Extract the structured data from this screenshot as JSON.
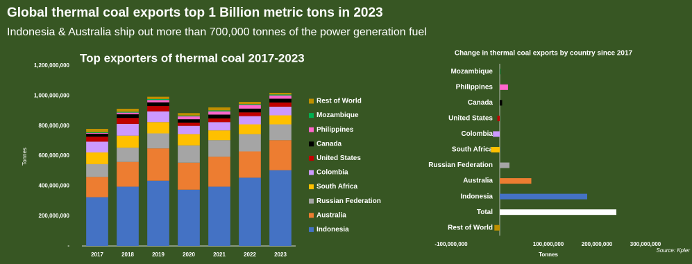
{
  "header": {
    "title": "Global thermal coal exports top 1 Billion metric tons in 2023",
    "subtitle": "Indonesia & Australia ship out more than 700,000 tonnes of the power generation fuel"
  },
  "source": "Source: Kpler",
  "chart_data": [
    {
      "type": "stacked_bar",
      "title": "Top exporters of thermal coal 2017-2023",
      "y_label": "Tonnes",
      "categories": [
        "2017",
        "2018",
        "2019",
        "2020",
        "2021",
        "2022",
        "2023"
      ],
      "ylim": [
        0,
        1200000000
      ],
      "yticks": [
        {
          "value": 0,
          "label": "-"
        },
        {
          "value": 200000000,
          "label": "200,000,000"
        },
        {
          "value": 400000000,
          "label": "400,000,000"
        },
        {
          "value": 600000000,
          "label": "600,000,000"
        },
        {
          "value": 800000000,
          "label": "800,000,000"
        },
        {
          "value": 1000000000,
          "label": "1,000,000,000"
        },
        {
          "value": 1200000000,
          "label": "1,200,000,000"
        }
      ],
      "series": [
        {
          "name": "Indonesia",
          "color": "#4472c4",
          "values": [
            325000000,
            395000000,
            435000000,
            375000000,
            395000000,
            455000000,
            505000000
          ]
        },
        {
          "name": "Australia",
          "color": "#ed7d31",
          "values": [
            135000000,
            165000000,
            215000000,
            180000000,
            200000000,
            175000000,
            200000000
          ]
        },
        {
          "name": "Russian Federation",
          "color": "#a5a5a5",
          "values": [
            85000000,
            95000000,
            100000000,
            115000000,
            110000000,
            115000000,
            105000000
          ]
        },
        {
          "name": "South Africa",
          "color": "#ffc000",
          "values": [
            78000000,
            80000000,
            75000000,
            75000000,
            65000000,
            65000000,
            60000000
          ]
        },
        {
          "name": "Colombia",
          "color": "#cc99ff",
          "values": [
            72000000,
            78000000,
            72000000,
            55000000,
            55000000,
            55000000,
            58000000
          ]
        },
        {
          "name": "United States",
          "color": "#c00000",
          "values": [
            33000000,
            40000000,
            35000000,
            22000000,
            25000000,
            25000000,
            28000000
          ]
        },
        {
          "name": "Canada",
          "color": "#000000",
          "values": [
            20000000,
            25000000,
            25000000,
            22000000,
            25000000,
            25000000,
            25000000
          ]
        },
        {
          "name": "Philippines",
          "color": "#ff66cc",
          "values": [
            5000000,
            10000000,
            15000000,
            20000000,
            22000000,
            25000000,
            22000000
          ]
        },
        {
          "name": "Mozambique",
          "color": "#00b050",
          "values": [
            5000000,
            6000000,
            7000000,
            5000000,
            6000000,
            5000000,
            6000000
          ]
        },
        {
          "name": "Rest of World",
          "color": "#bf8f00",
          "values": [
            22000000,
            20000000,
            15000000,
            16000000,
            20000000,
            15000000,
            11000000
          ]
        }
      ]
    },
    {
      "type": "barh",
      "title": "Change in thermal coal exports by country since 2017",
      "x_label": "Tonnes",
      "categories": [
        "Mozambique",
        "Philippines",
        "Canada",
        "United States",
        "Colombia",
        "South Africa",
        "Russian Federation",
        "Australia",
        "Indonesia",
        "Total",
        "Rest of World"
      ],
      "values": [
        1000000,
        17000000,
        5000000,
        -5000000,
        -14000000,
        -18000000,
        20000000,
        65000000,
        180000000,
        240000000,
        -11000000
      ],
      "colors": [
        "#00b050",
        "#ff66cc",
        "#000000",
        "#c00000",
        "#cc99ff",
        "#ffc000",
        "#a5a5a5",
        "#ed7d31",
        "#4472c4",
        "#ffffff",
        "#bf8f00"
      ],
      "xlim": [
        -100000000,
        350000000
      ],
      "xticks": [
        {
          "value": -100000000,
          "label": "-100,000,000"
        },
        {
          "value": 100000000,
          "label": "100,000,000"
        },
        {
          "value": 200000000,
          "label": "200,000,000"
        },
        {
          "value": 300000000,
          "label": "300,000,000"
        }
      ]
    }
  ]
}
